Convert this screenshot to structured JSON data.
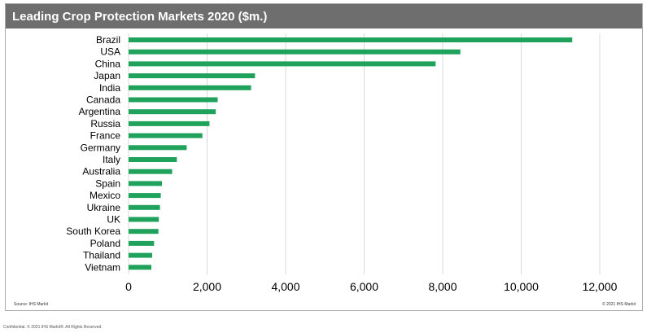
{
  "chart_data": {
    "type": "bar",
    "orientation": "horizontal",
    "title": "Leading Crop Protection Markets 2020 ($m.)",
    "categories": [
      "Brazil",
      "USA",
      "China",
      "Japan",
      "India",
      "Canada",
      "Argentina",
      "Russia",
      "France",
      "Germany",
      "Italy",
      "Australia",
      "Spain",
      "Mexico",
      "Ukraine",
      "UK",
      "South Korea",
      "Poland",
      "Thailand",
      "Vietnam"
    ],
    "values": [
      11300,
      8450,
      7820,
      3220,
      3120,
      2270,
      2220,
      2060,
      1880,
      1480,
      1230,
      1110,
      850,
      820,
      800,
      770,
      760,
      650,
      600,
      580
    ],
    "xlim": [
      0,
      12000
    ],
    "xticks": [
      "0",
      "2,000",
      "4,000",
      "6,000",
      "8,000",
      "10,000",
      "12,000"
    ],
    "xtick_values": [
      0,
      2000,
      4000,
      6000,
      8000,
      10000,
      12000
    ],
    "grid": true,
    "bar_color": "#1fa35c",
    "grid_color": "#d9d9d9"
  },
  "footer": {
    "source": "Source: IHS Markit",
    "copyright": "© 2021 IHS Markit",
    "confidential": "Confidential. © 2021 IHS Markit®. All Rights Reserved."
  }
}
